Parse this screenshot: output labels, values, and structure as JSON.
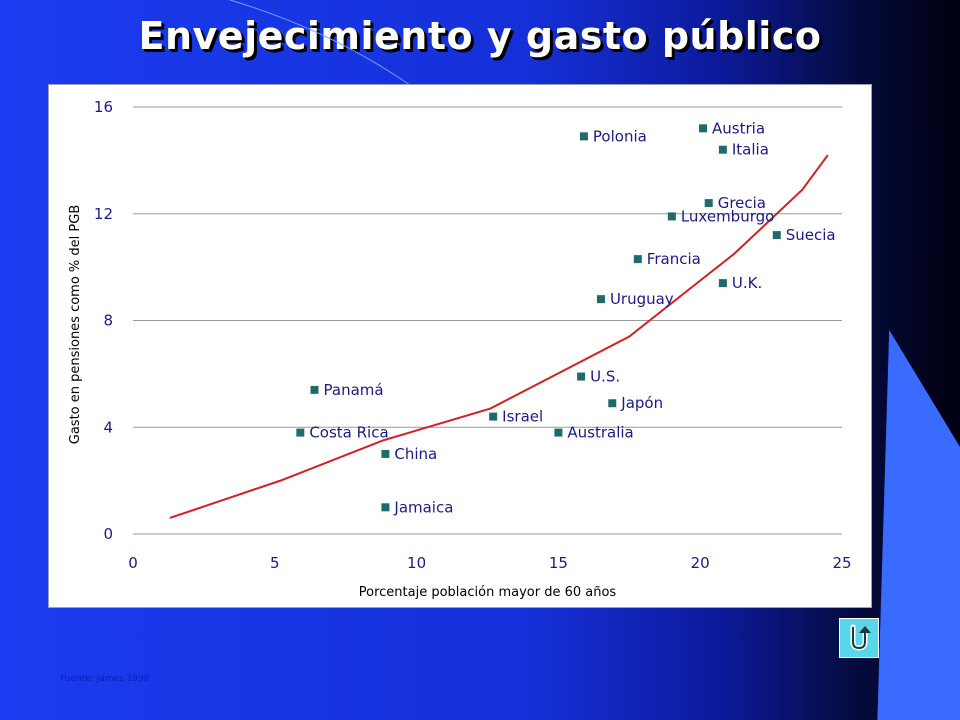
{
  "slide": {
    "title": "Envejecimiento y gasto público",
    "source": "Fuente: James 1998"
  },
  "nav": {
    "return_icon": "u-turn-return-icon"
  },
  "colors": {
    "marker": "#1f6b6b",
    "trend": "#d42020",
    "gridline": "#9a9a9a",
    "tick_text": "#1a1a8a"
  },
  "chart_data": {
    "type": "scatter",
    "title": "",
    "xlabel": "Porcentaje población mayor de 60 años",
    "ylabel": "Gasto en pensiones como % del PGB",
    "xlim": [
      0,
      25
    ],
    "ylim": [
      0,
      16
    ],
    "xticks": [
      0,
      5,
      10,
      15,
      20,
      25
    ],
    "yticks": [
      0,
      4,
      8,
      12,
      16
    ],
    "grid": "horizontal",
    "points": [
      {
        "label": "Polonia",
        "x": 15.9,
        "y": 14.9
      },
      {
        "label": "Austria",
        "x": 20.1,
        "y": 15.2
      },
      {
        "label": "Italia",
        "x": 20.8,
        "y": 14.4
      },
      {
        "label": "Grecia",
        "x": 20.3,
        "y": 12.4
      },
      {
        "label": "Luxemburgo",
        "x": 19.0,
        "y": 11.9
      },
      {
        "label": "Suecia",
        "x": 22.7,
        "y": 11.2
      },
      {
        "label": "Francia",
        "x": 17.8,
        "y": 10.3
      },
      {
        "label": "U.K.",
        "x": 20.8,
        "y": 9.4
      },
      {
        "label": "Uruguay",
        "x": 16.5,
        "y": 8.8
      },
      {
        "label": "Panamá",
        "x": 6.4,
        "y": 5.4
      },
      {
        "label": "U.S.",
        "x": 15.8,
        "y": 5.9
      },
      {
        "label": "Japón",
        "x": 16.9,
        "y": 4.9
      },
      {
        "label": "Israel",
        "x": 12.7,
        "y": 4.4
      },
      {
        "label": "Australia",
        "x": 15.0,
        "y": 3.8
      },
      {
        "label": "Costa Rica",
        "x": 5.9,
        "y": 3.8
      },
      {
        "label": "China",
        "x": 8.9,
        "y": 3.0
      },
      {
        "label": "Jamaica",
        "x": 8.9,
        "y": 1.0
      }
    ],
    "trend": {
      "x": [
        1.3,
        5.2,
        8.8,
        12.6,
        17.5,
        21.2,
        23.6,
        24.5
      ],
      "y": [
        0.6,
        2.0,
        3.5,
        4.7,
        7.4,
        10.5,
        12.9,
        14.2
      ]
    }
  }
}
